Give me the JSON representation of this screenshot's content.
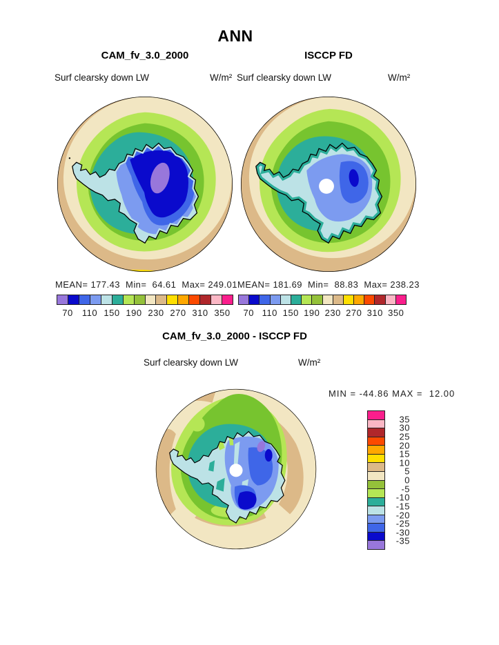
{
  "figure_title": "ANN",
  "palette": {
    "purple": "#9877DB",
    "darkblue": "#0A0ACC",
    "royal": "#3F66E8",
    "cornflower": "#7C9BF0",
    "lightcyan": "#BCE2E6",
    "teal": "#2CAE9A",
    "lightgreen": "#B5E655",
    "olive": "#94C13A",
    "map_green": "#77C42F",
    "cream": "#F2E6C2",
    "tan": "#DCB988",
    "yellow": "#FFDF00",
    "orange": "#FFA800",
    "redorange": "#FC4A00",
    "darkred": "#B0272B",
    "pink": "#FBB7C5",
    "magenta": "#FA1E8C",
    "white": "#FFFFFF",
    "coastline": "#000000"
  },
  "chart_data": {
    "type": "heatmap",
    "title": "ANN",
    "projection": "south polar stereographic map",
    "variable": "Surf clearsky down LW",
    "units": "W/m²",
    "panels": [
      {
        "name": "CAM_fv_3.0_2000",
        "title": "CAM_fv_3.0_2000",
        "stats": "MEAN= 177.43  Min=  64.61  Max= 249.01",
        "mean": 177.43,
        "min": 64.61,
        "max": 249.01
      },
      {
        "name": "ISCCP FD",
        "title": "ISCCP FD",
        "stats": "MEAN= 181.69  Min=  88.83  Max= 238.23",
        "mean": 181.69,
        "min": 88.83,
        "max": 238.23
      },
      {
        "name": "difference",
        "title": "CAM_fv_3.0_2000 - ISCCP FD",
        "stats": "MIN = -44.86 MAX =  12.00",
        "min": -44.86,
        "max": 12.0
      }
    ],
    "colorbar": {
      "orientation": "horizontal",
      "colors": [
        "#9877DB",
        "#0A0ACC",
        "#3F66E8",
        "#7C9BF0",
        "#BCE2E6",
        "#2CAE9A",
        "#B5E655",
        "#94C13A",
        "#F2E6C2",
        "#DCB988",
        "#FFDF00",
        "#FFA800",
        "#FC4A00",
        "#B0272B",
        "#FBB7C5",
        "#FA1E8C"
      ],
      "levels": [
        70,
        90,
        110,
        130,
        150,
        170,
        190,
        210,
        230,
        250,
        270,
        290,
        310,
        330,
        350
      ],
      "tick_labels": [
        "70",
        "110",
        "150",
        "190",
        "230",
        "270",
        "310",
        "350"
      ],
      "tick_positions": [
        1,
        3,
        5,
        7,
        9,
        11,
        13,
        15
      ]
    },
    "diff_colorbar": {
      "orientation": "vertical",
      "note": "same 16 colors, highest value at top",
      "levels": [
        35,
        30,
        25,
        20,
        15,
        10,
        5,
        0,
        -5,
        -10,
        -15,
        -20,
        -25,
        -30,
        -35
      ],
      "labels": [
        "35",
        "30",
        "25",
        "20",
        "15",
        "10",
        "5",
        "0",
        "-5",
        "-10",
        "-15",
        "-20",
        "-25",
        "-30",
        "-35"
      ]
    }
  }
}
